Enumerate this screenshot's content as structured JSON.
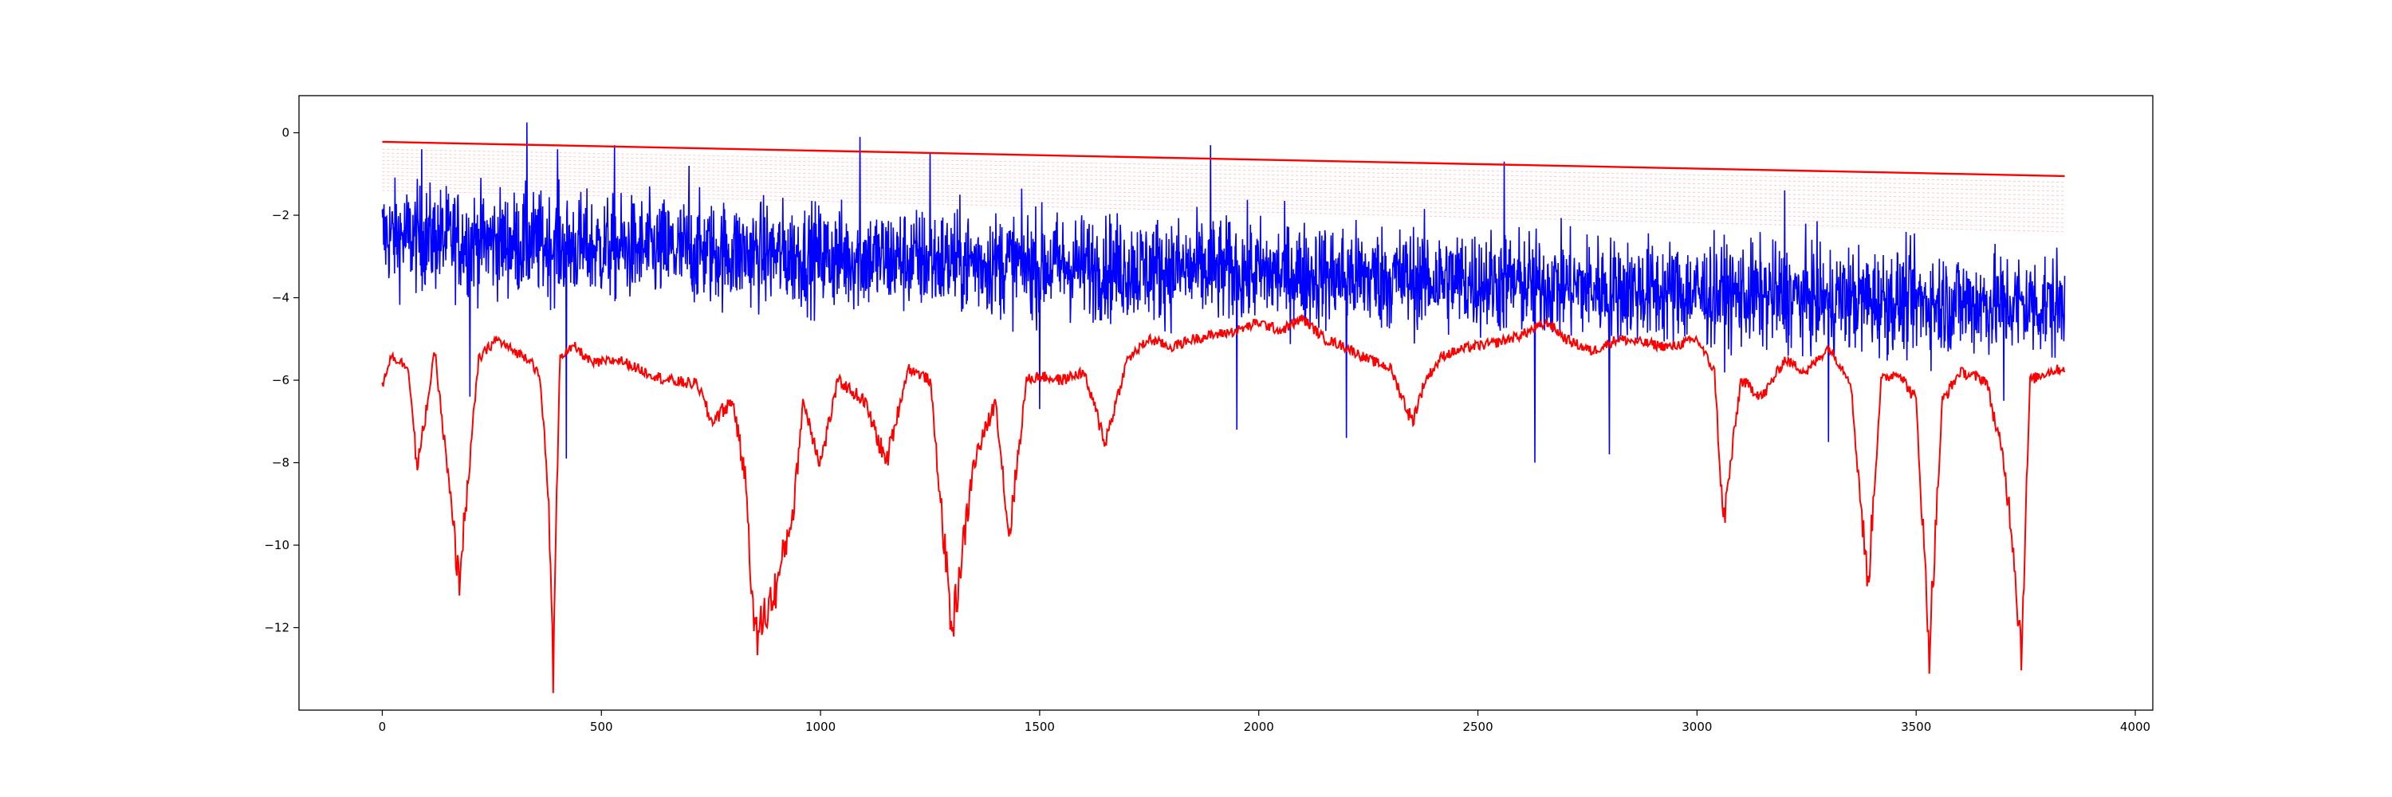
{
  "chart_data": {
    "type": "line",
    "title": "",
    "xlabel": "",
    "ylabel": "",
    "xlim": [
      -190,
      4040
    ],
    "ylim": [
      -14.0,
      0.9
    ],
    "x_ticks": [
      0,
      500,
      1000,
      1500,
      2000,
      2500,
      3000,
      3500,
      4000
    ],
    "y_ticks": [
      0,
      -2,
      -4,
      -6,
      -8,
      -10,
      -12
    ],
    "x_tick_labels": [
      "0",
      "500",
      "1000",
      "1500",
      "2000",
      "2500",
      "3000",
      "3500",
      "4000"
    ],
    "y_tick_labels": [
      "0",
      "−2",
      "−4",
      "−6",
      "−8",
      "−10",
      "−12"
    ],
    "grid": false,
    "legend": "none",
    "series": [
      {
        "color": "#0000ff",
        "style": "solid",
        "n_points": 3840,
        "x_range": [
          0,
          3839
        ],
        "mean_trend": [
          [
            0,
            -2.5
          ],
          [
            500,
            -2.8
          ],
          [
            1000,
            -3.0
          ],
          [
            1500,
            -3.2
          ],
          [
            2000,
            -3.4
          ],
          [
            2500,
            -3.6
          ],
          [
            3000,
            -3.9
          ],
          [
            3500,
            -4.1
          ],
          [
            3839,
            -4.2
          ]
        ],
        "spikes_up": [
          [
            90,
            -0.4
          ],
          [
            330,
            0.25
          ],
          [
            400,
            -0.4
          ],
          [
            530,
            -0.3
          ],
          [
            700,
            -0.8
          ],
          [
            1090,
            -0.1
          ],
          [
            1250,
            -0.5
          ],
          [
            1890,
            -0.3
          ],
          [
            2560,
            -0.7
          ],
          [
            3200,
            -1.4
          ]
        ],
        "spikes_down": [
          [
            200,
            -6.4
          ],
          [
            420,
            -7.9
          ],
          [
            1500,
            -6.7
          ],
          [
            1950,
            -7.2
          ],
          [
            2200,
            -7.4
          ],
          [
            2630,
            -8.0
          ],
          [
            2800,
            -7.8
          ],
          [
            3300,
            -7.5
          ],
          [
            3700,
            -6.5
          ]
        ]
      },
      {
        "color": "#ff0000",
        "style": "solid",
        "x": [
          0,
          20,
          60,
          80,
          120,
          175,
          220,
          260,
          300,
          340,
          360,
          378,
          390,
          405,
          440,
          480,
          540,
          600,
          650,
          720,
          750,
          800,
          830,
          850,
          900,
          940,
          960,
          1000,
          1040,
          1100,
          1150,
          1200,
          1250,
          1300,
          1350,
          1400,
          1430,
          1470,
          1500,
          1550,
          1600,
          1650,
          1700,
          1750,
          1800,
          1850,
          1900,
          1950,
          2000,
          2050,
          2100,
          2150,
          2200,
          2250,
          2300,
          2350,
          2380,
          2420,
          2480,
          2540,
          2600,
          2660,
          2700,
          2760,
          2820,
          2880,
          2940,
          3000,
          3040,
          3060,
          3100,
          3150,
          3200,
          3250,
          3300,
          3350,
          3390,
          3420,
          3460,
          3500,
          3530,
          3560,
          3600,
          3660,
          3700,
          3720,
          3740,
          3760,
          3800,
          3839
        ],
        "y": [
          -6.1,
          -5.4,
          -5.7,
          -8.2,
          -5.3,
          -10.9,
          -5.5,
          -5.0,
          -5.3,
          -5.5,
          -6.0,
          -8.5,
          -13.1,
          -5.4,
          -5.2,
          -5.6,
          -5.5,
          -5.8,
          -6.0,
          -6.1,
          -7.0,
          -6.5,
          -8.5,
          -12.3,
          -11.0,
          -9.0,
          -6.5,
          -8.0,
          -6.0,
          -6.5,
          -8.0,
          -5.7,
          -6.0,
          -12.1,
          -8.0,
          -6.5,
          -9.8,
          -6.0,
          -5.9,
          -6.0,
          -5.8,
          -7.5,
          -5.5,
          -5.0,
          -5.2,
          -5.0,
          -4.9,
          -4.8,
          -4.6,
          -4.8,
          -4.5,
          -5.0,
          -5.2,
          -5.5,
          -5.7,
          -7.0,
          -6.0,
          -5.4,
          -5.2,
          -5.1,
          -4.9,
          -4.6,
          -5.0,
          -5.3,
          -5.0,
          -5.1,
          -5.2,
          -5.0,
          -5.8,
          -9.5,
          -6.0,
          -6.4,
          -5.5,
          -5.8,
          -5.2,
          -6.0,
          -11.0,
          -6.0,
          -5.8,
          -6.5,
          -12.5,
          -6.5,
          -5.8,
          -6.0,
          -8.0,
          -9.8,
          -12.6,
          -6.0,
          -5.8,
          -5.7
        ]
      },
      {
        "color": "#ff0000",
        "style": "solid",
        "x": [
          0,
          3839
        ],
        "y": [
          -0.22,
          -1.05
        ]
      }
    ],
    "faint_envelope": {
      "color": "#ff0000",
      "style": "dashed",
      "count": 12,
      "start_top": -0.4,
      "start_bottom": -1.4,
      "end_top": -1.2,
      "end_bottom": -2.4
    }
  }
}
